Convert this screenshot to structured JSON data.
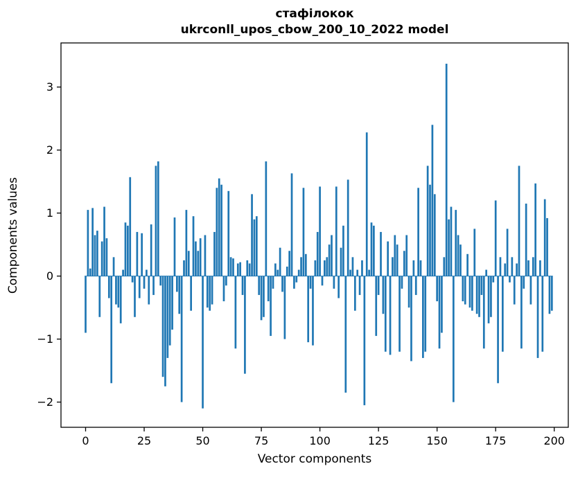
{
  "chart_data": {
    "type": "bar",
    "title": "стафілокок",
    "subtitle": "ukrconll_upos_cbow_200_10_2022 model",
    "xlabel": "Vector components",
    "ylabel": "Components values",
    "bar_color": "#1f77b4",
    "xlim": [
      -10.5,
      206
    ],
    "ylim": [
      -2.4,
      3.7
    ],
    "xticks": [
      0,
      25,
      50,
      75,
      100,
      125,
      150,
      175,
      200
    ],
    "yticks": [
      -2,
      -1,
      0,
      1,
      2,
      3
    ],
    "ytick_labels": [
      "−2",
      "−1",
      "0",
      "1",
      "2",
      "3"
    ],
    "legend": "none",
    "grid": false,
    "values": [
      -0.9,
      1.05,
      0.12,
      1.08,
      0.65,
      0.72,
      -0.65,
      0.55,
      1.1,
      0.6,
      -0.35,
      -1.7,
      0.3,
      -0.45,
      -0.5,
      -0.75,
      0.1,
      0.85,
      0.8,
      1.57,
      -0.1,
      -0.65,
      0.7,
      -0.35,
      0.68,
      -0.2,
      0.1,
      -0.45,
      0.82,
      -0.3,
      1.75,
      1.82,
      -0.15,
      -1.6,
      -1.75,
      -1.3,
      -1.1,
      -0.85,
      0.93,
      -0.25,
      -0.6,
      -2.0,
      0.25,
      1.05,
      0.4,
      -0.55,
      0.95,
      0.55,
      0.4,
      0.6,
      -2.1,
      0.65,
      -0.5,
      -0.55,
      -0.45,
      0.7,
      1.4,
      1.55,
      1.45,
      -0.4,
      -0.15,
      1.35,
      0.3,
      0.28,
      -1.15,
      0.2,
      0.22,
      -0.3,
      -1.55,
      0.25,
      0.2,
      1.3,
      0.9,
      0.95,
      -0.3,
      -0.7,
      -0.65,
      1.82,
      -0.4,
      -0.95,
      -0.2,
      0.2,
      0.1,
      0.45,
      -0.25,
      -1.0,
      0.15,
      0.4,
      1.63,
      -0.2,
      -0.1,
      0.1,
      0.3,
      1.4,
      0.35,
      -1.05,
      -0.2,
      -1.1,
      0.25,
      0.7,
      1.42,
      -0.15,
      0.25,
      0.3,
      0.5,
      0.65,
      -0.2,
      1.42,
      -0.35,
      0.45,
      0.8,
      -1.85,
      1.53,
      0.1,
      0.3,
      -0.55,
      0.1,
      -0.3,
      0.25,
      -2.05,
      2.28,
      0.1,
      0.85,
      0.8,
      -0.95,
      -0.3,
      0.7,
      -0.6,
      -1.2,
      0.55,
      -1.25,
      0.3,
      0.65,
      0.5,
      -1.2,
      -0.2,
      0.4,
      0.65,
      -0.5,
      -1.35,
      0.25,
      -0.3,
      1.4,
      0.25,
      -1.3,
      -1.2,
      1.75,
      1.45,
      2.4,
      1.3,
      -0.4,
      -1.15,
      -0.9,
      0.3,
      3.37,
      0.9,
      1.1,
      -2.0,
      1.05,
      0.65,
      0.5,
      -0.4,
      -0.45,
      0.35,
      -0.5,
      -0.55,
      0.75,
      -0.6,
      -0.65,
      -0.3,
      -1.15,
      0.1,
      -0.75,
      -0.65,
      -0.1,
      1.2,
      -1.7,
      0.3,
      -1.2,
      0.2,
      0.75,
      -0.1,
      0.3,
      -0.45,
      0.2,
      1.75,
      -1.15,
      -0.2,
      1.15,
      0.25,
      -0.45,
      0.3,
      1.47,
      -1.3,
      0.25,
      -1.2,
      1.22,
      0.92,
      -0.6,
      -0.55
    ]
  }
}
